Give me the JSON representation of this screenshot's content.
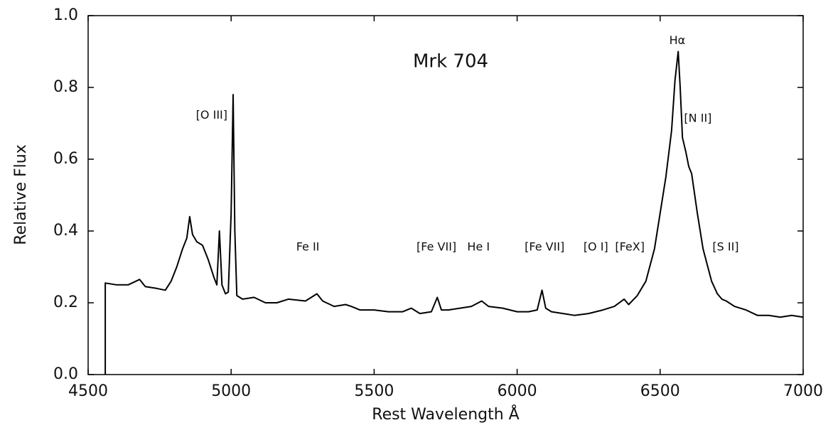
{
  "chart_data": {
    "type": "line",
    "title": "Mrk 704",
    "xlabel": "Rest Wavelength Å",
    "ylabel": "Relative Flux",
    "color": "#000000",
    "xlim": [
      4500,
      7000
    ],
    "xticks": [
      4500,
      5000,
      5500,
      6000,
      6500,
      7000
    ],
    "ylim": [
      0,
      1
    ],
    "yticks": [
      {
        "value": 0,
        "label": "0.0"
      },
      0.2,
      0.4,
      0.6,
      0.8,
      {
        "value": 1,
        "label": "1.0"
      }
    ],
    "x": [
      4560,
      4560,
      4600,
      4640,
      4680,
      4700,
      4740,
      4770,
      4790,
      4810,
      4830,
      4845,
      4855,
      4865,
      4880,
      4900,
      4920,
      4940,
      4950,
      4959,
      4968,
      4980,
      4990,
      5000,
      5007,
      5013,
      5020,
      5040,
      5080,
      5120,
      5160,
      5200,
      5260,
      5300,
      5320,
      5360,
      5400,
      5420,
      5450,
      5500,
      5550,
      5600,
      5630,
      5660,
      5700,
      5721,
      5735,
      5760,
      5800,
      5840,
      5876,
      5900,
      5950,
      6000,
      6040,
      6070,
      6087,
      6100,
      6120,
      6160,
      6200,
      6250,
      6300,
      6340,
      6374,
      6390,
      6420,
      6450,
      6480,
      6500,
      6520,
      6540,
      6552,
      6563,
      6570,
      6578,
      6584,
      6590,
      6600,
      6610,
      6630,
      6650,
      6680,
      6700,
      6716,
      6731,
      6760,
      6800,
      6840,
      6880,
      6920,
      6960,
      7000
    ],
    "values": [
      0,
      0.255,
      0.25,
      0.25,
      0.265,
      0.245,
      0.24,
      0.235,
      0.26,
      0.3,
      0.35,
      0.38,
      0.44,
      0.39,
      0.37,
      0.36,
      0.32,
      0.27,
      0.25,
      0.4,
      0.25,
      0.225,
      0.23,
      0.45,
      0.78,
      0.4,
      0.22,
      0.21,
      0.215,
      0.2,
      0.2,
      0.21,
      0.205,
      0.225,
      0.205,
      0.19,
      0.195,
      0.19,
      0.18,
      0.18,
      0.175,
      0.175,
      0.185,
      0.17,
      0.175,
      0.215,
      0.18,
      0.18,
      0.185,
      0.19,
      0.205,
      0.19,
      0.185,
      0.175,
      0.175,
      0.18,
      0.235,
      0.185,
      0.175,
      0.17,
      0.165,
      0.17,
      0.18,
      0.19,
      0.21,
      0.195,
      0.22,
      0.26,
      0.35,
      0.45,
      0.55,
      0.68,
      0.82,
      0.9,
      0.8,
      0.66,
      0.64,
      0.62,
      0.58,
      0.56,
      0.45,
      0.35,
      0.26,
      0.225,
      0.21,
      0.205,
      0.19,
      0.18,
      0.165,
      0.165,
      0.16,
      0.165,
      0.16
    ],
    "annotations": [
      {
        "text": "[O III]",
        "x": 4932,
        "y": 0.722
      },
      {
        "text": "Hα",
        "x": 6560,
        "y": 0.93
      },
      {
        "text": "[N II]",
        "x": 6632,
        "y": 0.713
      },
      {
        "text": "Fe II",
        "x": 5268,
        "y": 0.354
      },
      {
        "text": "[Fe VII]",
        "x": 5718,
        "y": 0.354
      },
      {
        "text": "He I",
        "x": 5865,
        "y": 0.354
      },
      {
        "text": "[Fe VII]",
        "x": 6096,
        "y": 0.354
      },
      {
        "text": "[O I]",
        "x": 6275,
        "y": 0.354
      },
      {
        "text": "[FeX]",
        "x": 6394,
        "y": 0.354
      },
      {
        "text": "[S II]",
        "x": 6729,
        "y": 0.354
      }
    ]
  }
}
